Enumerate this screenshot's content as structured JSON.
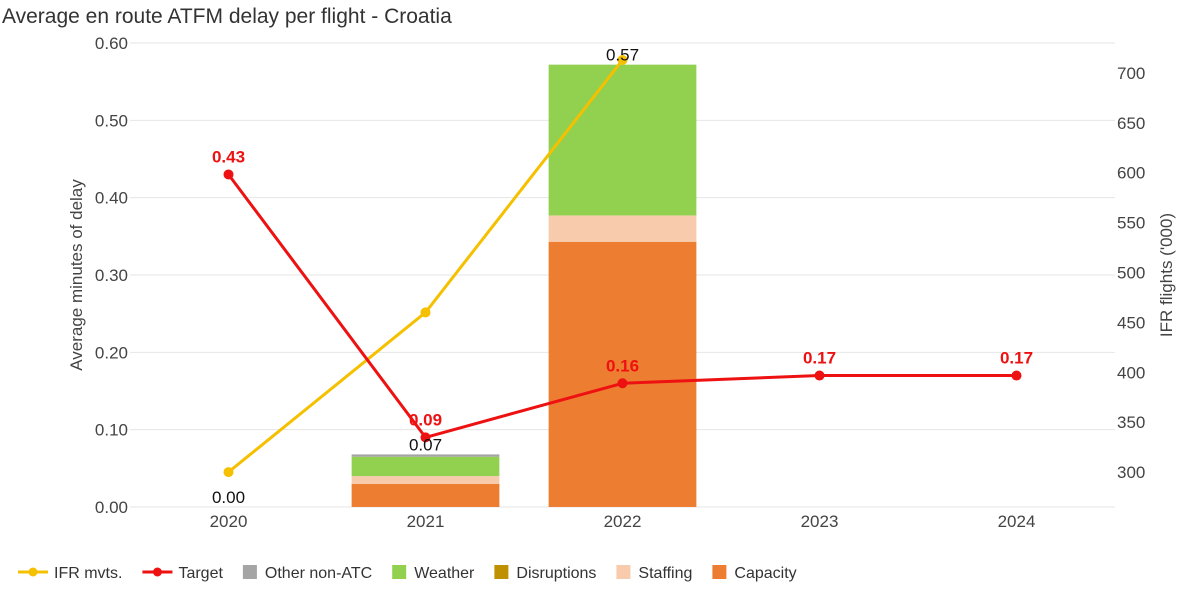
{
  "chart_data": {
    "type": "bar",
    "title": "Average en route ATFM delay per flight - Croatia",
    "ylabel": "Average minutes of delay",
    "y2label": "IFR flights ('000)",
    "categories": [
      "2020",
      "2021",
      "2022",
      "2023",
      "2024"
    ],
    "ylim": [
      0,
      0.6
    ],
    "yticks": [
      "0.00",
      "0.10",
      "0.20",
      "0.30",
      "0.40",
      "0.50",
      "0.60"
    ],
    "y2lim": [
      265,
      730
    ],
    "y2ticks": [
      "300",
      "350",
      "400",
      "450",
      "500",
      "550",
      "600",
      "650",
      "700"
    ],
    "stacked_series": [
      {
        "name": "Capacity",
        "color": "#ed7d31",
        "values": [
          0,
          0.03,
          0.343,
          null,
          null
        ]
      },
      {
        "name": "Staffing",
        "color": "#f8cbad",
        "values": [
          0,
          0.01,
          0.034,
          null,
          null
        ]
      },
      {
        "name": "Disruptions",
        "color": "#bf9000",
        "values": [
          0,
          0,
          0,
          null,
          null
        ]
      },
      {
        "name": "Weather",
        "color": "#92d050",
        "values": [
          0,
          0.025,
          0.195,
          null,
          null
        ]
      },
      {
        "name": "Other non-ATC",
        "color": "#a5a5a5",
        "values": [
          0,
          0.003,
          0,
          null,
          null
        ]
      }
    ],
    "totals": [
      {
        "category": "2020",
        "value": 0.0,
        "label": "0.00"
      },
      {
        "category": "2021",
        "value": 0.068,
        "label": "0.07"
      },
      {
        "category": "2022",
        "value": 0.572,
        "label": "0.57"
      }
    ],
    "line_series": [
      {
        "name": "IFR mvts.",
        "color": "#f5c000",
        "axis": "right",
        "values": [
          300,
          460,
          713,
          null,
          null
        ],
        "labels": [
          null,
          null,
          null,
          null,
          null
        ]
      },
      {
        "name": "Target",
        "color": "#ee1111",
        "axis": "left",
        "values": [
          0.43,
          0.09,
          0.16,
          0.17,
          0.17
        ],
        "labels": [
          "0.43",
          "0.09",
          "0.16",
          "0.17",
          "0.17"
        ]
      }
    ],
    "legend": {
      "position": "bottom-left",
      "items": [
        {
          "name": "IFR mvts.",
          "kind": "line",
          "color": "#f5c000"
        },
        {
          "name": "Target",
          "kind": "line",
          "color": "#ee1111"
        },
        {
          "name": "Other non-ATC",
          "kind": "box",
          "color": "#a5a5a5"
        },
        {
          "name": "Weather",
          "kind": "box",
          "color": "#92d050"
        },
        {
          "name": "Disruptions",
          "kind": "box",
          "color": "#bf9000"
        },
        {
          "name": "Staffing",
          "kind": "box",
          "color": "#f8cbad"
        },
        {
          "name": "Capacity",
          "kind": "box",
          "color": "#ed7d31"
        }
      ]
    },
    "grid": true
  }
}
